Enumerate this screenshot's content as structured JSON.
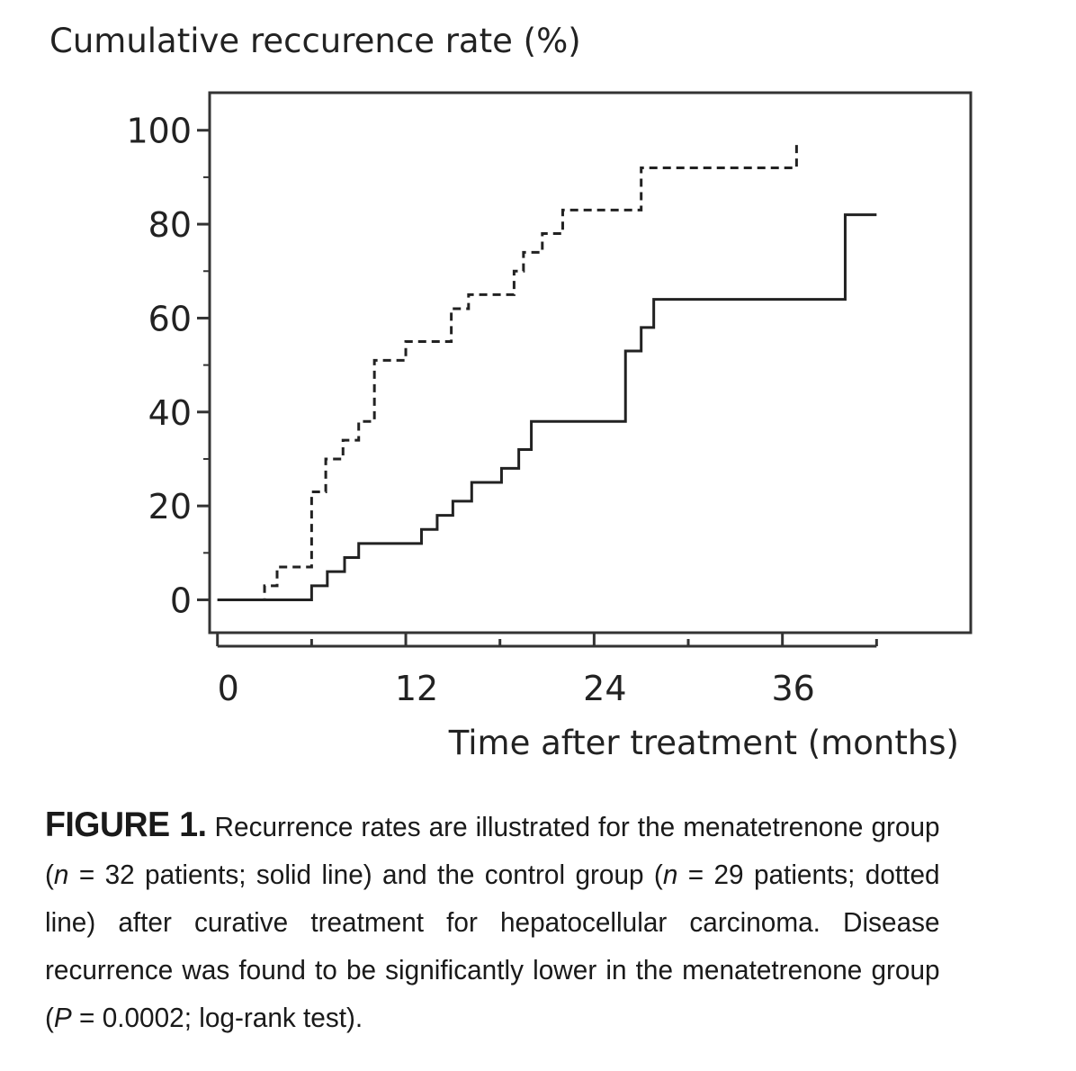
{
  "figure": {
    "label": "FIGURE 1.",
    "caption": {
      "p1": " Recurrence rates are illustrated for the menatetrenone group (",
      "n": "n",
      "p2": " = 32 patients; solid line) and the control group (",
      "p3": " = 29 patients; dotted line) after curative treatment for hepatocellular carcinoma. Disease recurrence was found to be significantly lower in the menatetrenone group (",
      "P": "P",
      "p4": " = 0.0002; log-rank test)."
    }
  },
  "chart_data": {
    "type": "line",
    "title": "",
    "ylabel": "Cumulative reccurence rate (%)",
    "xlabel": "Time after treatment (months)",
    "xlim": [
      -0.5,
      48
    ],
    "ylim": [
      -7,
      108
    ],
    "x_ticks": [
      0,
      12,
      24,
      36
    ],
    "x_tick_labels": [
      "0",
      "12",
      "24",
      "36"
    ],
    "x_minor_ticks": [
      6,
      18,
      30,
      42
    ],
    "y_ticks": [
      0,
      20,
      40,
      60,
      80,
      100
    ],
    "y_tick_labels": [
      "0",
      "20",
      "40",
      "60",
      "80",
      "100"
    ],
    "y_minor_ticks": [
      10,
      30,
      50,
      70,
      90
    ],
    "grid": false,
    "legend": "none",
    "step": true,
    "series": [
      {
        "style": "dashed",
        "color": "#222222",
        "x": [
          0,
          3.0,
          3.8,
          6.0,
          6.9,
          8.0,
          9.0,
          10.0,
          12.0,
          14.9,
          16.0,
          18.9,
          19.5,
          20.7,
          22.0,
          27.0,
          36.9
        ],
        "y": [
          0,
          3,
          7,
          23,
          30,
          34,
          38,
          51,
          55,
          62,
          65,
          70,
          74,
          78,
          83,
          92,
          97
        ]
      },
      {
        "style": "solid",
        "color": "#222222",
        "x": [
          0,
          6.0,
          7.0,
          8.1,
          9.0,
          13.0,
          14.0,
          15.0,
          16.2,
          18.1,
          19.2,
          20.0,
          26.0,
          27.0,
          27.8,
          40.0,
          42.0
        ],
        "y": [
          0,
          3,
          6,
          9,
          12,
          15,
          18,
          21,
          25,
          28,
          32,
          38,
          53,
          58,
          64,
          82,
          82
        ]
      }
    ]
  }
}
